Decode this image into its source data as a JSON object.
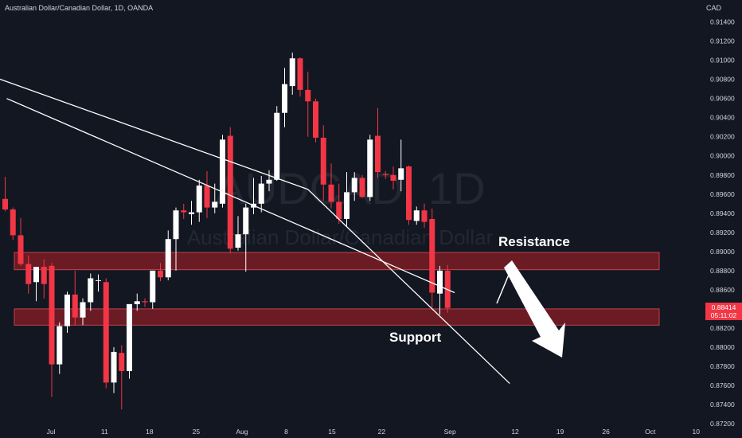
{
  "header": {
    "symbol_line": "Australian Dollar/Canadian Dollar, 1D, OANDA"
  },
  "watermark": {
    "ticker": "AUDCAD, 1D",
    "name": "Australian Dollar/Canadian Dollar"
  },
  "price_axis": {
    "title": "CAD"
  },
  "last_price": {
    "value": "0.88414",
    "countdown": "05:11:02"
  },
  "annotations": {
    "resistance": "Resistance",
    "support": "Support"
  },
  "colors": {
    "background": "#131722",
    "up": "#ffffff",
    "down": "#f23645",
    "zone": "#7a1c25",
    "zone_border": "#c2424d",
    "text": "#d1d4dc",
    "line": "#ffffff"
  },
  "chart_data": {
    "type": "candlestick",
    "x_ticks": [
      "Jul",
      "11",
      "18",
      "25",
      "Aug",
      "8",
      "15",
      "22",
      "Sep",
      "12",
      "19",
      "26",
      "Oct",
      "10"
    ],
    "y_ticks": [
      "0.91400",
      "0.91200",
      "0.91000",
      "0.90800",
      "0.90600",
      "0.90400",
      "0.90200",
      "0.90000",
      "0.89800",
      "0.89600",
      "0.89400",
      "0.89200",
      "0.89000",
      "0.88800",
      "0.88600",
      "0.88400",
      "0.88200",
      "0.88000",
      "0.87800",
      "0.87600",
      "0.87400",
      "0.87200"
    ],
    "ylim": [
      0.8715,
      0.9163
    ],
    "zones": [
      {
        "label": "Resistance",
        "low": 0.8881,
        "high": 0.8899
      },
      {
        "label": "Support",
        "low": 0.8823,
        "high": 0.884
      }
    ],
    "candles": [
      {
        "o": 0.8955,
        "h": 0.8978,
        "l": 0.8942,
        "c": 0.8944
      },
      {
        "o": 0.8944,
        "h": 0.8946,
        "l": 0.8912,
        "c": 0.8917
      },
      {
        "o": 0.8917,
        "h": 0.8935,
        "l": 0.8885,
        "c": 0.8887
      },
      {
        "o": 0.8887,
        "h": 0.8896,
        "l": 0.8856,
        "c": 0.8866
      },
      {
        "o": 0.8868,
        "h": 0.8883,
        "l": 0.8848,
        "c": 0.8884
      },
      {
        "o": 0.8884,
        "h": 0.8892,
        "l": 0.8851,
        "c": 0.8866
      },
      {
        "o": 0.8885,
        "h": 0.8888,
        "l": 0.8748,
        "c": 0.8782
      },
      {
        "o": 0.8782,
        "h": 0.8826,
        "l": 0.8772,
        "c": 0.8822
      },
      {
        "o": 0.8822,
        "h": 0.8858,
        "l": 0.8815,
        "c": 0.8855
      },
      {
        "o": 0.8855,
        "h": 0.888,
        "l": 0.8823,
        "c": 0.8831
      },
      {
        "o": 0.8831,
        "h": 0.8851,
        "l": 0.8823,
        "c": 0.8847
      },
      {
        "o": 0.8847,
        "h": 0.8877,
        "l": 0.8838,
        "c": 0.8872
      },
      {
        "o": 0.887,
        "h": 0.8876,
        "l": 0.8858,
        "c": 0.887
      },
      {
        "o": 0.8868,
        "h": 0.8872,
        "l": 0.8757,
        "c": 0.8763
      },
      {
        "o": 0.8763,
        "h": 0.88,
        "l": 0.8752,
        "c": 0.8795
      },
      {
        "o": 0.8794,
        "h": 0.8802,
        "l": 0.8735,
        "c": 0.8775
      },
      {
        "o": 0.8775,
        "h": 0.8845,
        "l": 0.8767,
        "c": 0.8845
      },
      {
        "o": 0.8845,
        "h": 0.8856,
        "l": 0.8838,
        "c": 0.8848
      },
      {
        "o": 0.8848,
        "h": 0.8851,
        "l": 0.8842,
        "c": 0.8847
      },
      {
        "o": 0.8847,
        "h": 0.8877,
        "l": 0.884,
        "c": 0.888
      },
      {
        "o": 0.888,
        "h": 0.8888,
        "l": 0.8869,
        "c": 0.8873
      },
      {
        "o": 0.8873,
        "h": 0.8922,
        "l": 0.887,
        "c": 0.8913
      },
      {
        "o": 0.8913,
        "h": 0.8946,
        "l": 0.888,
        "c": 0.8943
      },
      {
        "o": 0.8943,
        "h": 0.895,
        "l": 0.8934,
        "c": 0.8941
      },
      {
        "o": 0.8939,
        "h": 0.8953,
        "l": 0.8928,
        "c": 0.8941
      },
      {
        "o": 0.8941,
        "h": 0.8975,
        "l": 0.8931,
        "c": 0.8969
      },
      {
        "o": 0.8969,
        "h": 0.8984,
        "l": 0.8935,
        "c": 0.8946
      },
      {
        "o": 0.8946,
        "h": 0.8971,
        "l": 0.894,
        "c": 0.8952
      },
      {
        "o": 0.895,
        "h": 0.9022,
        "l": 0.8946,
        "c": 0.9017
      },
      {
        "o": 0.9021,
        "h": 0.903,
        "l": 0.8898,
        "c": 0.8903
      },
      {
        "o": 0.8904,
        "h": 0.8937,
        "l": 0.8901,
        "c": 0.8918
      },
      {
        "o": 0.8918,
        "h": 0.895,
        "l": 0.8879,
        "c": 0.8946
      },
      {
        "o": 0.8946,
        "h": 0.8977,
        "l": 0.8939,
        "c": 0.895
      },
      {
        "o": 0.895,
        "h": 0.8979,
        "l": 0.8941,
        "c": 0.8971
      },
      {
        "o": 0.8971,
        "h": 0.8985,
        "l": 0.8963,
        "c": 0.8975
      },
      {
        "o": 0.8975,
        "h": 0.9052,
        "l": 0.8974,
        "c": 0.9045
      },
      {
        "o": 0.9045,
        "h": 0.9092,
        "l": 0.903,
        "c": 0.9075
      },
      {
        "o": 0.9073,
        "h": 0.9108,
        "l": 0.9064,
        "c": 0.9102
      },
      {
        "o": 0.9102,
        "h": 0.9103,
        "l": 0.9062,
        "c": 0.9069
      },
      {
        "o": 0.9069,
        "h": 0.9088,
        "l": 0.902,
        "c": 0.9057
      },
      {
        "o": 0.9057,
        "h": 0.906,
        "l": 0.9014,
        "c": 0.9019
      },
      {
        "o": 0.9019,
        "h": 0.9032,
        "l": 0.8953,
        "c": 0.897
      },
      {
        "o": 0.897,
        "h": 0.8992,
        "l": 0.8945,
        "c": 0.8952
      },
      {
        "o": 0.8952,
        "h": 0.8971,
        "l": 0.8929,
        "c": 0.8934
      },
      {
        "o": 0.8934,
        "h": 0.8983,
        "l": 0.8926,
        "c": 0.8962
      },
      {
        "o": 0.8962,
        "h": 0.8983,
        "l": 0.8953,
        "c": 0.8977
      },
      {
        "o": 0.8977,
        "h": 0.898,
        "l": 0.8956,
        "c": 0.8957
      },
      {
        "o": 0.8957,
        "h": 0.9022,
        "l": 0.8953,
        "c": 0.9017
      },
      {
        "o": 0.9021,
        "h": 0.905,
        "l": 0.8977,
        "c": 0.8983
      },
      {
        "o": 0.8981,
        "h": 0.8984,
        "l": 0.8976,
        "c": 0.898
      },
      {
        "o": 0.898,
        "h": 0.8989,
        "l": 0.8965,
        "c": 0.8974
      },
      {
        "o": 0.8975,
        "h": 0.9017,
        "l": 0.8963,
        "c": 0.8987
      },
      {
        "o": 0.8989,
        "h": 0.899,
        "l": 0.8928,
        "c": 0.8933
      },
      {
        "o": 0.8932,
        "h": 0.8947,
        "l": 0.8928,
        "c": 0.8943
      },
      {
        "o": 0.8943,
        "h": 0.895,
        "l": 0.8925,
        "c": 0.8931
      },
      {
        "o": 0.8934,
        "h": 0.8945,
        "l": 0.8841,
        "c": 0.8857
      },
      {
        "o": 0.8856,
        "h": 0.8885,
        "l": 0.8834,
        "c": 0.888
      },
      {
        "o": 0.888,
        "h": 0.8886,
        "l": 0.8836,
        "c": 0.8841
      }
    ],
    "trendlines": [
      {
        "name": "upper channel",
        "points": [
          {
            "bar": 0.2,
            "y": 0.906
          },
          {
            "bar": 57.9,
            "y": 0.8857
          }
        ]
      },
      {
        "name": "lower channel",
        "points": [
          {
            "bar": -3.0,
            "y": 0.9087
          },
          {
            "bar": 39.0,
            "y": 0.8965
          },
          {
            "bar": 65.0,
            "y": 0.8762
          }
        ]
      }
    ]
  }
}
